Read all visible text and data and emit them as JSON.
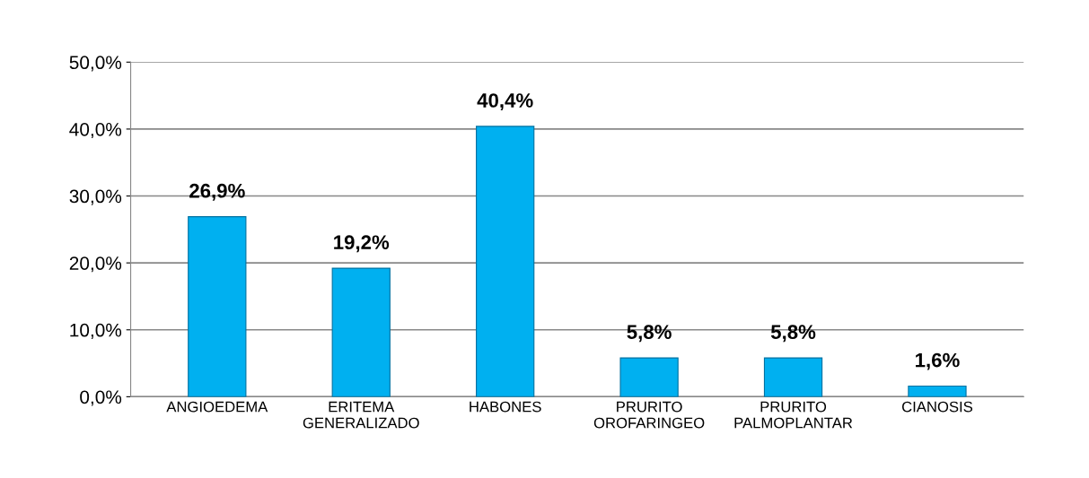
{
  "chart_data": {
    "type": "bar",
    "categories": [
      "ANGIOEDEMA",
      "ERITEMA\nGENERALIZADO",
      "HABONES",
      "PRURITO\nOROFARINGEO",
      "PRURITO\nPALMOPLANTAR",
      "CIANOSIS"
    ],
    "values": [
      26.9,
      19.2,
      40.4,
      5.8,
      5.8,
      1.6
    ],
    "value_labels": [
      "26,9%",
      "19,2%",
      "40,4%",
      "5,8%",
      "5,8%",
      "1,6%"
    ],
    "color": "#00b0f0",
    "ylim": [
      0,
      50
    ],
    "yticks": [
      {
        "value": 0,
        "label": "0,0%"
      },
      {
        "value": 10,
        "label": "10,0%"
      },
      {
        "value": 20,
        "label": "20,0%"
      },
      {
        "value": 30,
        "label": "30,0%"
      },
      {
        "value": 40,
        "label": "40,0%"
      },
      {
        "value": 50,
        "label": "50,0%"
      }
    ],
    "grid": "y"
  }
}
